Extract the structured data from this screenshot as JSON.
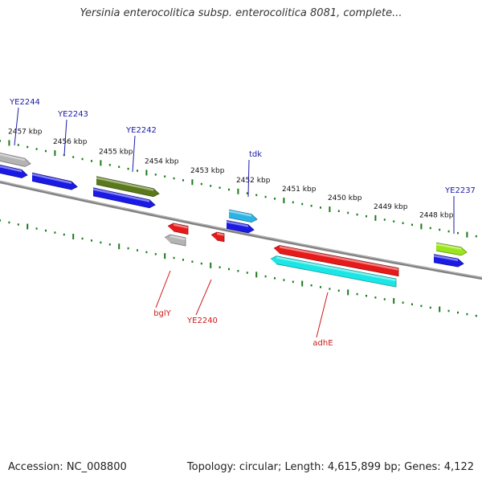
{
  "title": "Yersinia enterocolitica subsp. enterocolitica 8081, complete...",
  "footer": {
    "accession": "Accession: NC_008800",
    "summary": "Topology: circular; Length: 4,615,899 bp; Genes: 4,122"
  },
  "ruler_labels": [
    "2457 kbp",
    "2456 kbp",
    "2455 kbp",
    "2454 kbp",
    "2453 kbp",
    "2452 kbp",
    "2451 kbp",
    "2450 kbp",
    "2449 kbp",
    "2448 kbp"
  ],
  "colors": {
    "backbone": "#808080",
    "tick": "#1a7a1a",
    "forward_label": "#1a1aa8",
    "reverse_label": "#cc1a1a"
  },
  "genes": [
    {
      "name": "YE2244",
      "strand": "+",
      "color": "#b4b4b4"
    },
    {
      "name": "YE2243",
      "strand": "+",
      "color": "#1a1ae6"
    },
    {
      "name": "YE2242",
      "strand": "+",
      "color": "#5a7a1a"
    },
    {
      "name": "tdk",
      "strand": "+",
      "color": "#2ab4e6"
    },
    {
      "name": "YE2237",
      "strand": "+",
      "color": "#9ae61a"
    },
    {
      "name": "bglY",
      "strand": "-",
      "color": "#e61a1a"
    },
    {
      "name": "YE2240",
      "strand": "-",
      "color": "#e61a1a"
    },
    {
      "name": "adhE",
      "strand": "-",
      "color": "#e61a1a"
    }
  ],
  "unlabeled_features": [
    {
      "strand": "+",
      "color": "#1a1ae6"
    },
    {
      "strand": "+",
      "color": "#1a1ae6"
    },
    {
      "strand": "+",
      "color": "#1a1ae6"
    },
    {
      "strand": "+",
      "color": "#1a1ae6"
    },
    {
      "strand": "+",
      "color": "#1a1ae6"
    },
    {
      "strand": "-",
      "color": "#b4b4b4"
    },
    {
      "strand": "-",
      "color": "#1ae6e6"
    }
  ]
}
